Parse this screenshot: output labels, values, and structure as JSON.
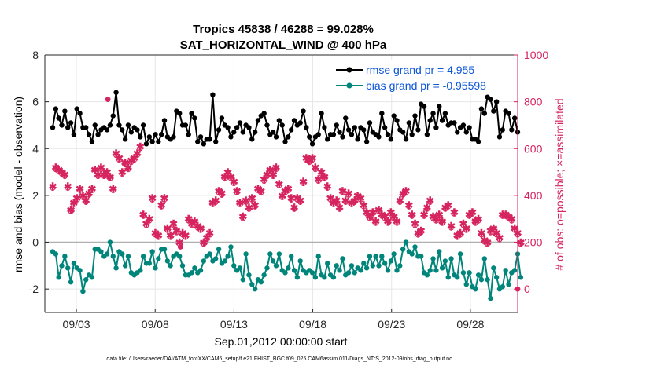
{
  "chart_data": {
    "type": "line",
    "title": "Tropics 45838 / 46288 = 99.028%",
    "subtitle": "SAT_HORIZONTAL_WIND @ 400 hPa",
    "xlabel": "Sep.01,2012 00:00:00 start",
    "ylabel_left": "rmse and bias (model - observation)",
    "ylabel_right": "# of obs: o=possible; ×=assimilated",
    "footer": "data file: /Users/raeder/DAI/ATM_forcXX/CAM6_setup/f.e21.FHIST_BGC.f09_025.CAM6assim.011/Diags_NTrS_2012-09/obs_diag_output.nc",
    "x_ticks": [
      {
        "day": 3,
        "label": "09/03"
      },
      {
        "day": 8,
        "label": "09/08"
      },
      {
        "day": 13,
        "label": "09/13"
      },
      {
        "day": 18,
        "label": "09/18"
      },
      {
        "day": 23,
        "label": "09/23"
      },
      {
        "day": 28,
        "label": "09/28"
      }
    ],
    "xlim": [
      1,
      31
    ],
    "ylim_left": [
      -3,
      8
    ],
    "yticks_left": [
      -2,
      0,
      2,
      4,
      6,
      8
    ],
    "ylim_right": [
      -100,
      1000
    ],
    "yticks_right": [
      0,
      200,
      400,
      600,
      800,
      1000
    ],
    "colors": {
      "rmse": "#000000",
      "bias": "#00857a",
      "obs": "#d6245f",
      "legend_text": "#0b55d9",
      "zero_line": "#b0b0b0"
    },
    "series": [
      {
        "name": "rmse grand pr = 4.955",
        "axis": "left",
        "values": [
          4.9,
          5.7,
          5.3,
          5.0,
          5.6,
          4.9,
          5.1,
          4.6,
          5.7,
          5.5,
          4.9,
          4.9,
          4.6,
          4.3,
          5.0,
          4.6,
          4.8,
          4.9,
          4.8,
          5.0,
          5.4,
          6.4,
          5.0,
          4.8,
          4.4,
          5.0,
          4.7,
          4.9,
          4.8,
          4.5,
          5.0,
          4.2,
          4.5,
          4.3,
          4.6,
          4.3,
          4.6,
          5.2,
          4.5,
          4.4,
          4.5,
          5.6,
          5.5,
          5.0,
          5.0,
          4.6,
          5.5,
          5.3,
          4.3,
          4.5,
          4.2,
          4.4,
          4.4,
          6.3,
          4.3,
          4.8,
          5.3,
          5.0,
          4.9,
          4.5,
          4.7,
          4.9,
          5.1,
          4.7,
          5.0,
          4.9,
          4.4,
          4.7,
          5.2,
          5.4,
          5.5,
          5.0,
          4.6,
          4.7,
          4.5,
          5.2,
          5.0,
          4.3,
          4.5,
          4.8,
          5.2,
          5.0,
          5.1,
          5.6,
          4.9,
          4.5,
          4.2,
          4.5,
          4.6,
          5.5,
          4.9,
          4.4,
          4.6,
          4.6,
          5.0,
          4.7,
          4.5,
          5.3,
          4.8,
          4.6,
          4.9,
          4.4,
          4.9,
          4.8,
          4.3,
          5.1,
          4.7,
          4.6,
          4.5,
          5.5,
          4.9,
          4.6,
          4.4,
          5.4,
          5.2,
          4.8,
          4.7,
          4.4,
          5.1,
          4.6,
          5.4,
          4.8,
          5.9,
          5.8,
          4.6,
          5.2,
          5.5,
          4.9,
          5.8,
          5.2,
          5.5,
          5.0,
          5.1,
          5.1,
          4.7,
          4.9,
          5.0,
          4.7,
          4.9,
          4.4,
          4.4,
          4.3,
          5.7,
          5.5,
          6.2,
          6.1,
          5.6,
          6.0,
          4.5,
          4.8,
          5.6,
          5.5,
          4.8,
          5.3,
          4.7
        ]
      },
      {
        "name": "bias grand pr = -0.95598",
        "axis": "left",
        "values": [
          -0.4,
          -0.5,
          -1.5,
          -1.0,
          -0.6,
          -1.1,
          -1.7,
          -0.9,
          -1.1,
          -1.2,
          -2.1,
          -1.6,
          -1.4,
          -1.5,
          -0.3,
          -0.3,
          -0.4,
          -0.6,
          -0.5,
          0.0,
          -0.6,
          -1.1,
          -0.4,
          -0.5,
          -1.0,
          -0.6,
          -1.3,
          -1.4,
          -1.3,
          -1.2,
          -0.6,
          -0.9,
          -0.9,
          -0.4,
          -1.1,
          -0.7,
          -0.3,
          -0.3,
          -0.8,
          -1.0,
          -0.6,
          -0.5,
          -0.6,
          -1.0,
          -1.4,
          -1.4,
          -1.3,
          -1.1,
          -1.3,
          -1.2,
          -0.8,
          -0.6,
          -0.5,
          -0.8,
          -0.7,
          -0.3,
          -0.9,
          -0.8,
          -0.6,
          -0.2,
          -1.0,
          -1.2,
          -1.1,
          -1.6,
          -0.5,
          -1.4,
          -1.8,
          -2.0,
          -1.6,
          -1.7,
          -1.4,
          -1.1,
          -0.5,
          -0.8,
          -1.0,
          -0.5,
          -1.2,
          -1.3,
          -1.1,
          -0.6,
          -1.2,
          -1.5,
          -0.8,
          -1.2,
          -1.3,
          -1.2,
          -1.3,
          -1.5,
          -0.6,
          -1.4,
          -1.5,
          -0.9,
          -1.4,
          -1.5,
          -1.0,
          -1.2,
          -0.7,
          -1.4,
          -1.3,
          -1.0,
          -1.3,
          -1.1,
          -1.2,
          -0.9,
          -1.1,
          -0.6,
          -1.0,
          -0.6,
          -1.0,
          -0.6,
          -0.9,
          -1.2,
          -0.8,
          -0.5,
          -1.2,
          -1.0,
          -0.3,
          0.0,
          -0.4,
          -0.5,
          -0.2,
          -0.6,
          -0.6,
          -1.3,
          -1.4,
          -1.2,
          -0.7,
          -1.2,
          -0.4,
          -1.1,
          -0.8,
          -1.5,
          -0.7,
          -1.4,
          -1.5,
          -0.5,
          -1.3,
          -1.8,
          -1.3,
          -1.9,
          -2.0,
          -1.4,
          -1.6,
          -0.7,
          -1.6,
          -2.4,
          -1.1,
          -1.5,
          -2.0,
          -1.9,
          -1.2,
          -1.8,
          -1.3,
          -1.2,
          -0.5,
          -1.5
        ]
      },
      {
        "name": "obs assimilated",
        "axis": "right",
        "values": [
          440,
          520,
          510,
          500,
          490,
          440,
          340,
          370,
          390,
          430,
          400,
          380,
          410,
          430,
          510,
          490,
          520,
          490,
          500,
          480,
          430,
          580,
          560,
          500,
          540,
          520,
          550,
          560,
          580,
          610,
          320,
          280,
          300,
          390,
          240,
          230,
          360,
          390,
          260,
          230,
          280,
          250,
          200,
          240,
          230,
          300,
          280,
          290,
          270,
          260,
          200,
          220,
          240,
          370,
          380,
          420,
          410,
          480,
          500,
          480,
          460,
          420,
          370,
          310,
          380,
          350,
          390,
          360,
          430,
          420,
          470,
          490,
          510,
          490,
          520,
          450,
          400,
          420,
          430,
          390,
          350,
          390,
          380,
          460,
          560,
          550,
          560,
          520,
          470,
          500,
          480,
          440,
          390,
          370,
          380,
          350,
          420,
          380,
          410,
          370,
          380,
          400,
          390,
          360,
          330,
          310,
          330,
          290,
          340,
          320,
          310,
          290,
          330,
          310,
          290,
          380,
          410,
          420,
          360,
          320,
          280,
          240,
          250,
          320,
          350,
          380,
          310,
          300,
          320,
          290,
          350,
          360,
          270,
          330,
          230,
          240,
          280,
          260,
          320,
          330,
          290,
          300,
          240,
          210,
          200,
          250,
          260,
          240,
          220,
          320,
          320,
          310,
          300,
          260,
          240,
          200
        ]
      },
      {
        "name": "obs possible",
        "axis": "right",
        "values": [
          440,
          520,
          510,
          500,
          490,
          440,
          340,
          370,
          390,
          430,
          400,
          380,
          410,
          430,
          520,
          490,
          520,
          490,
          500,
          480,
          430,
          580,
          560,
          500,
          540,
          520,
          550,
          560,
          580,
          610,
          320,
          280,
          300,
          390,
          240,
          230,
          360,
          390,
          260,
          230,
          280,
          250,
          200,
          240,
          230,
          300,
          280,
          290,
          270,
          260,
          200,
          220,
          240,
          370,
          380,
          420,
          410,
          480,
          500,
          480,
          460,
          420,
          370,
          310,
          380,
          350,
          390,
          360,
          430,
          420,
          470,
          490,
          510,
          490,
          520,
          450,
          400,
          420,
          430,
          390,
          350,
          390,
          380,
          460,
          560,
          550,
          560,
          520,
          470,
          500,
          480,
          440,
          390,
          370,
          380,
          350,
          420,
          380,
          410,
          370,
          380,
          400,
          390,
          360,
          330,
          310,
          330,
          290,
          340,
          320,
          310,
          290,
          330,
          310,
          290,
          380,
          410,
          420,
          360,
          320,
          280,
          240,
          250,
          320,
          350,
          380,
          310,
          300,
          320,
          290,
          350,
          360,
          270,
          330,
          230,
          240,
          280,
          260,
          320,
          330,
          290,
          300,
          240,
          210,
          200,
          250,
          260,
          240,
          220,
          320,
          320,
          310,
          300,
          260,
          240,
          200
        ]
      },
      {
        "name": "outliers",
        "axis": "right",
        "points": [
          {
            "day": 5.0,
            "value": 810
          },
          {
            "day": 9.6,
            "value": 180
          },
          {
            "day": 31.0,
            "value": 0
          }
        ]
      }
    ]
  }
}
